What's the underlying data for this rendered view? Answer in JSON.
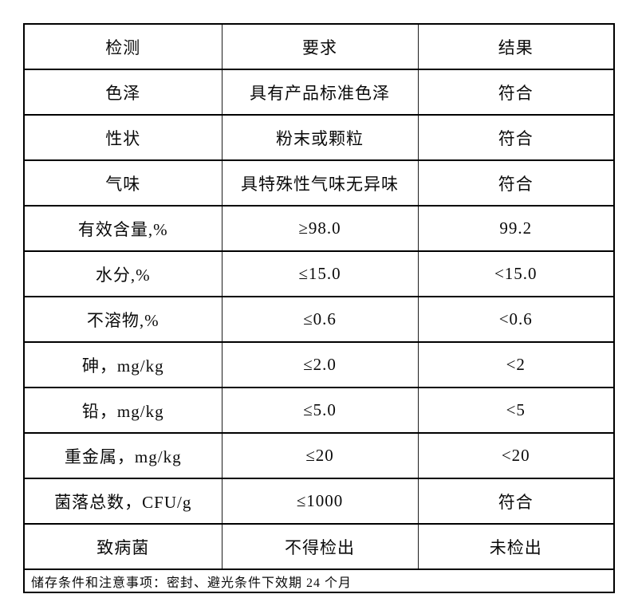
{
  "page": {
    "background_color": "#ffffff",
    "text_color": "#0a0a0a",
    "border_color": "#000000"
  },
  "table": {
    "headers": [
      "检测",
      "要求",
      "结果"
    ],
    "rows": [
      {
        "test": "色泽",
        "requirement": "具有产品标准色泽",
        "result": "符合"
      },
      {
        "test": "性状",
        "requirement": "粉末或颗粒",
        "result": "符合"
      },
      {
        "test": "气味",
        "requirement": "具特殊性气味无异味",
        "result": "符合"
      },
      {
        "test": "有效含量,%",
        "requirement": "≥98.0",
        "result": "99.2"
      },
      {
        "test": "水分,%",
        "requirement": "≤15.0",
        "result": "<15.0"
      },
      {
        "test": "不溶物,%",
        "requirement": "≤0.6",
        "result": "<0.6"
      },
      {
        "test": "砷，mg/kg",
        "requirement": "≤2.0",
        "result": "<2"
      },
      {
        "test": "铅，mg/kg",
        "requirement": "≤5.0",
        "result": "<5"
      },
      {
        "test": "重金属，mg/kg",
        "requirement": "≤20",
        "result": "<20"
      },
      {
        "test": "菌落总数，CFU/g",
        "requirement": "≤1000",
        "result": "符合"
      },
      {
        "test": "致病菌",
        "requirement": "不得检出",
        "result": "未检出"
      }
    ],
    "footer": "储存条件和注意事项：密封、避光条件下效期 24 个月"
  }
}
